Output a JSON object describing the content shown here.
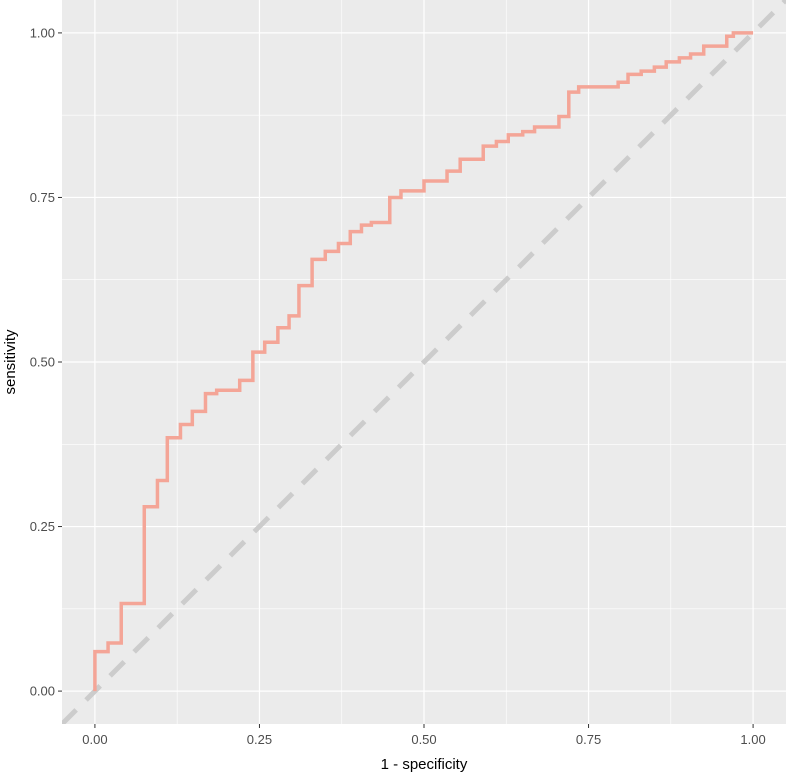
{
  "chart_data": {
    "type": "line",
    "title": "",
    "xlabel": "1 - specificity",
    "ylabel": "sensitivity",
    "xlim": [
      -0.05,
      1.05
    ],
    "ylim": [
      -0.05,
      1.05
    ],
    "x_ticks": [
      0.0,
      0.25,
      0.5,
      0.75,
      1.0
    ],
    "x_tick_labels": [
      "0.00",
      "0.25",
      "0.50",
      "0.75",
      "1.00"
    ],
    "y_ticks": [
      0.0,
      0.25,
      0.5,
      0.75,
      1.0
    ],
    "y_tick_labels": [
      "0.00",
      "0.25",
      "0.50",
      "0.75",
      "1.00"
    ],
    "grid": true,
    "colors": {
      "panel": "#ebebeb",
      "grid": "#ffffff",
      "roc": "#f4a597",
      "reference": "#cccccc"
    },
    "series": [
      {
        "style": "step",
        "points": [
          [
            0.0,
            0.0
          ],
          [
            0.0,
            0.06
          ],
          [
            0.02,
            0.06
          ],
          [
            0.02,
            0.073
          ],
          [
            0.04,
            0.073
          ],
          [
            0.04,
            0.133
          ],
          [
            0.075,
            0.133
          ],
          [
            0.075,
            0.28
          ],
          [
            0.095,
            0.28
          ],
          [
            0.095,
            0.32
          ],
          [
            0.11,
            0.32
          ],
          [
            0.11,
            0.385
          ],
          [
            0.13,
            0.385
          ],
          [
            0.13,
            0.405
          ],
          [
            0.148,
            0.405
          ],
          [
            0.148,
            0.425
          ],
          [
            0.168,
            0.425
          ],
          [
            0.168,
            0.452
          ],
          [
            0.185,
            0.452
          ],
          [
            0.185,
            0.457
          ],
          [
            0.22,
            0.457
          ],
          [
            0.22,
            0.472
          ],
          [
            0.24,
            0.472
          ],
          [
            0.24,
            0.515
          ],
          [
            0.258,
            0.515
          ],
          [
            0.258,
            0.53
          ],
          [
            0.278,
            0.53
          ],
          [
            0.278,
            0.552
          ],
          [
            0.295,
            0.552
          ],
          [
            0.295,
            0.57
          ],
          [
            0.31,
            0.57
          ],
          [
            0.31,
            0.616
          ],
          [
            0.33,
            0.616
          ],
          [
            0.33,
            0.656
          ],
          [
            0.35,
            0.656
          ],
          [
            0.35,
            0.668
          ],
          [
            0.37,
            0.668
          ],
          [
            0.37,
            0.68
          ],
          [
            0.388,
            0.68
          ],
          [
            0.388,
            0.698
          ],
          [
            0.405,
            0.698
          ],
          [
            0.405,
            0.708
          ],
          [
            0.42,
            0.708
          ],
          [
            0.42,
            0.712
          ],
          [
            0.448,
            0.712
          ],
          [
            0.448,
            0.75
          ],
          [
            0.465,
            0.75
          ],
          [
            0.465,
            0.76
          ],
          [
            0.5,
            0.76
          ],
          [
            0.5,
            0.775
          ],
          [
            0.535,
            0.775
          ],
          [
            0.535,
            0.79
          ],
          [
            0.555,
            0.79
          ],
          [
            0.555,
            0.808
          ],
          [
            0.59,
            0.808
          ],
          [
            0.59,
            0.828
          ],
          [
            0.61,
            0.828
          ],
          [
            0.61,
            0.835
          ],
          [
            0.628,
            0.835
          ],
          [
            0.628,
            0.845
          ],
          [
            0.65,
            0.845
          ],
          [
            0.65,
            0.85
          ],
          [
            0.668,
            0.85
          ],
          [
            0.668,
            0.857
          ],
          [
            0.705,
            0.857
          ],
          [
            0.705,
            0.873
          ],
          [
            0.72,
            0.873
          ],
          [
            0.72,
            0.91
          ],
          [
            0.735,
            0.91
          ],
          [
            0.735,
            0.918
          ],
          [
            0.795,
            0.918
          ],
          [
            0.795,
            0.925
          ],
          [
            0.81,
            0.925
          ],
          [
            0.81,
            0.937
          ],
          [
            0.83,
            0.937
          ],
          [
            0.83,
            0.942
          ],
          [
            0.85,
            0.942
          ],
          [
            0.85,
            0.948
          ],
          [
            0.868,
            0.948
          ],
          [
            0.868,
            0.956
          ],
          [
            0.888,
            0.956
          ],
          [
            0.888,
            0.962
          ],
          [
            0.905,
            0.962
          ],
          [
            0.905,
            0.968
          ],
          [
            0.925,
            0.968
          ],
          [
            0.925,
            0.98
          ],
          [
            0.96,
            0.98
          ],
          [
            0.96,
            0.995
          ],
          [
            0.97,
            0.995
          ],
          [
            0.97,
            1.0
          ],
          [
            1.0,
            1.0
          ]
        ]
      },
      {
        "style": "dashed-reference",
        "points": [
          [
            -0.05,
            -0.05
          ],
          [
            1.05,
            1.05
          ]
        ]
      }
    ]
  }
}
